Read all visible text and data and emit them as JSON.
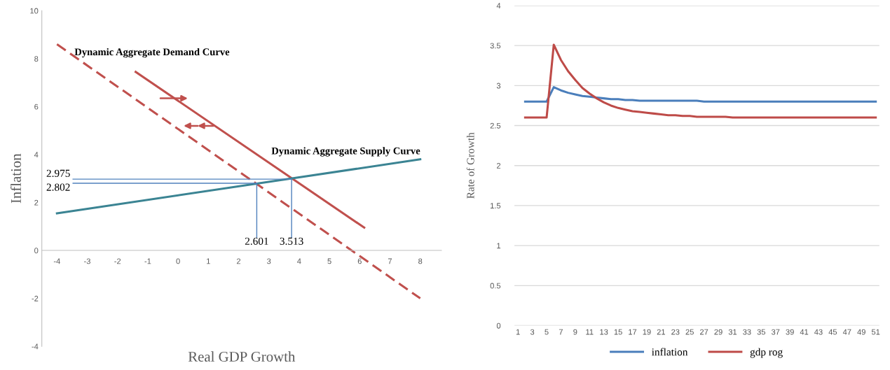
{
  "chart_data": [
    {
      "type": "line",
      "xlabel": "Real GDP Growth",
      "ylabel": "Inflation",
      "xlim": [
        -4.5,
        8.7
      ],
      "ylim": [
        -4,
        10
      ],
      "xticks": [
        -4,
        -3,
        -2,
        -1,
        0,
        1,
        2,
        3,
        4,
        5,
        6,
        7,
        8
      ],
      "yticks": [
        -4,
        -2,
        0,
        2,
        4,
        6,
        8,
        10
      ],
      "grid": false,
      "series": [
        {
          "color": "#c0504d",
          "line_style": "dashed",
          "x": [
            -4,
            8
          ],
          "values": [
            8.6,
            -2
          ]
        },
        {
          "color": "#c0504d",
          "line_style": "solid",
          "x": [
            -1.4,
            6.15
          ],
          "values": [
            7.45,
            0.95
          ]
        },
        {
          "color": "#3b8493",
          "line_style": "solid",
          "x": [
            -4,
            8
          ],
          "values": [
            1.55,
            3.8
          ]
        },
        {
          "color": "#4f81bd",
          "line_style": "solid",
          "x": [
            -3.47,
            3.75
          ],
          "values": [
            2.975,
            2.975
          ]
        },
        {
          "color": "#4f81bd",
          "line_style": "solid",
          "x": [
            -3.47,
            2.6
          ],
          "values": [
            2.802,
            2.802
          ]
        },
        {
          "color": "#4f81bd",
          "line_style": "solid",
          "x": [
            2.6,
            2.6
          ],
          "values": [
            0.55,
            2.802
          ]
        },
        {
          "color": "#4f81bd",
          "line_style": "solid",
          "x": [
            3.75,
            3.75
          ],
          "values": [
            0.55,
            2.975
          ]
        }
      ],
      "annotations": [
        "Dynamic Aggregate Demand Curve",
        "Dynamic Aggregate Supply Curve",
        {
          "text": "2.975",
          "x": -3.47,
          "y": 2.975
        },
        {
          "text": "2.802",
          "x": -3.47,
          "y": 2.802
        },
        {
          "text": "2.601",
          "x": 2.6,
          "y": 0.55
        },
        {
          "text": "3.513",
          "x": 3.75,
          "y": 0.55
        }
      ]
    },
    {
      "type": "line",
      "ylabel": "Rate of Growth",
      "xlim": [
        0.5,
        51.5
      ],
      "ylim": [
        0,
        4
      ],
      "xticks": [
        1,
        3,
        5,
        7,
        9,
        11,
        13,
        15,
        17,
        19,
        21,
        23,
        25,
        27,
        29,
        31,
        33,
        35,
        37,
        39,
        41,
        43,
        45,
        47,
        49,
        51
      ],
      "yticks": [
        0,
        0.5,
        1,
        1.5,
        2,
        2.5,
        3,
        3.5,
        4
      ],
      "grid": "y",
      "legend": "bottom",
      "x": [
        2,
        3,
        4,
        5,
        6,
        7,
        8,
        9,
        10,
        11,
        12,
        13,
        14,
        15,
        16,
        17,
        18,
        19,
        20,
        21,
        22,
        23,
        24,
        25,
        26,
        27,
        28,
        29,
        30,
        31,
        32,
        33,
        34,
        35,
        36,
        37,
        38,
        39,
        40,
        41,
        42,
        43,
        44,
        45,
        46,
        47,
        48,
        49,
        50,
        51
      ],
      "series": [
        {
          "name": "inflation",
          "color": "#4a7ebb",
          "values": [
            2.8,
            2.8,
            2.8,
            2.8,
            2.98,
            2.94,
            2.91,
            2.89,
            2.87,
            2.86,
            2.85,
            2.84,
            2.83,
            2.83,
            2.82,
            2.82,
            2.81,
            2.81,
            2.81,
            2.81,
            2.81,
            2.81,
            2.81,
            2.81,
            2.81,
            2.8,
            2.8,
            2.8,
            2.8,
            2.8,
            2.8,
            2.8,
            2.8,
            2.8,
            2.8,
            2.8,
            2.8,
            2.8,
            2.8,
            2.8,
            2.8,
            2.8,
            2.8,
            2.8,
            2.8,
            2.8,
            2.8,
            2.8,
            2.8,
            2.8
          ]
        },
        {
          "name": "gdp rog",
          "color": "#be4b48",
          "values": [
            2.6,
            2.6,
            2.6,
            2.6,
            3.51,
            3.32,
            3.18,
            3.07,
            2.97,
            2.9,
            2.84,
            2.79,
            2.75,
            2.72,
            2.7,
            2.68,
            2.67,
            2.66,
            2.65,
            2.64,
            2.63,
            2.63,
            2.62,
            2.62,
            2.61,
            2.61,
            2.61,
            2.61,
            2.61,
            2.6,
            2.6,
            2.6,
            2.6,
            2.6,
            2.6,
            2.6,
            2.6,
            2.6,
            2.6,
            2.6,
            2.6,
            2.6,
            2.6,
            2.6,
            2.6,
            2.6,
            2.6,
            2.6,
            2.6,
            2.6
          ]
        }
      ]
    }
  ]
}
